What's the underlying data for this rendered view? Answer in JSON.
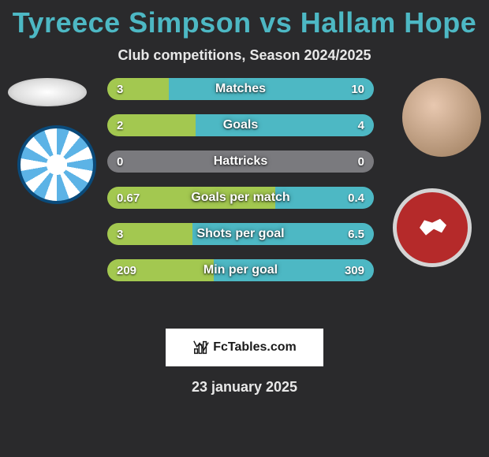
{
  "title_color": "#4db8c4",
  "player1": "Tyreece Simpson",
  "vs": " vs ",
  "player2": "Hallam Hope",
  "subtitle": "Club competitions, Season 2024/2025",
  "date": "23 january 2025",
  "brand": "FcTables.com",
  "colors": {
    "left": "#a3c850",
    "right": "#4db8c4",
    "neutral": "#7a7a7e"
  },
  "stats": [
    {
      "label": "Matches",
      "l": "3",
      "r": "10",
      "lw": 23,
      "rw": 77,
      "lcolor": "#a3c850",
      "rcolor": "#4db8c4"
    },
    {
      "label": "Goals",
      "l": "2",
      "r": "4",
      "lw": 33,
      "rw": 67,
      "lcolor": "#a3c850",
      "rcolor": "#4db8c4"
    },
    {
      "label": "Hattricks",
      "l": "0",
      "r": "0",
      "lw": 50,
      "rw": 50,
      "lcolor": "#7a7a7e",
      "rcolor": "#7a7a7e"
    },
    {
      "label": "Goals per match",
      "l": "0.67",
      "r": "0.4",
      "lw": 63,
      "rw": 37,
      "lcolor": "#a3c850",
      "rcolor": "#4db8c4"
    },
    {
      "label": "Shots per goal",
      "l": "3",
      "r": "6.5",
      "lw": 32,
      "rw": 68,
      "lcolor": "#a3c850",
      "rcolor": "#4db8c4"
    },
    {
      "label": "Min per goal",
      "l": "209",
      "r": "309",
      "lw": 40,
      "rw": 60,
      "lcolor": "#a3c850",
      "rcolor": "#4db8c4"
    }
  ]
}
